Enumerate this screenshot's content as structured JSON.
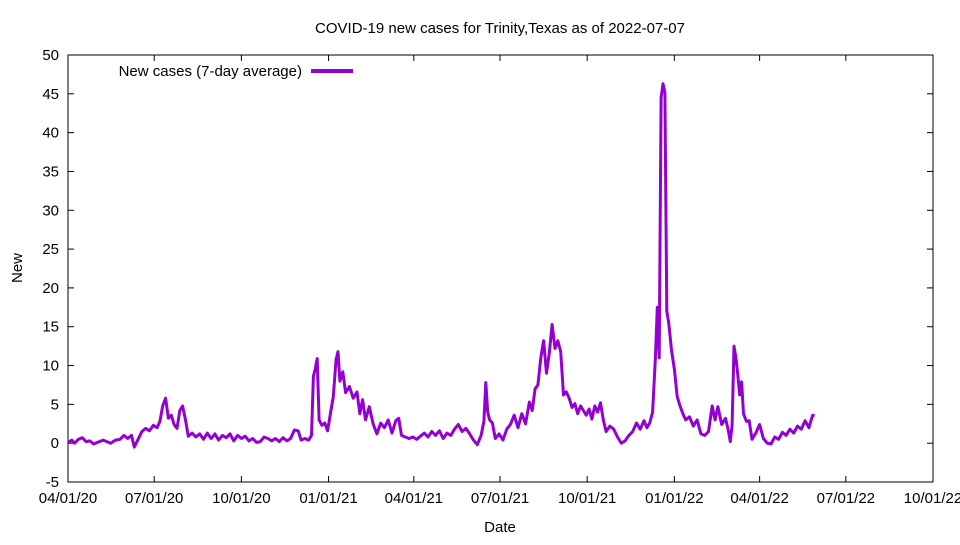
{
  "chart_data": {
    "type": "line",
    "title": "COVID-19 new cases for Trinity,Texas as of 2022-07-07",
    "xlabel": "Date",
    "ylabel": "New",
    "ylim": [
      -5,
      50
    ],
    "yticks": [
      -5,
      0,
      5,
      10,
      15,
      20,
      25,
      30,
      35,
      40,
      45,
      50
    ],
    "xlim": [
      "2020-04-01",
      "2022-10-01"
    ],
    "xticks": [
      {
        "date": "2020-04-01",
        "label": "04/01/20"
      },
      {
        "date": "2020-07-01",
        "label": "07/01/20"
      },
      {
        "date": "2020-10-01",
        "label": "10/01/20"
      },
      {
        "date": "2021-01-01",
        "label": "01/01/21"
      },
      {
        "date": "2021-04-01",
        "label": "04/01/21"
      },
      {
        "date": "2021-07-01",
        "label": "07/01/21"
      },
      {
        "date": "2021-10-01",
        "label": "10/01/21"
      },
      {
        "date": "2022-01-01",
        "label": "01/01/22"
      },
      {
        "date": "2022-04-01",
        "label": "04/01/22"
      },
      {
        "date": "2022-07-01",
        "label": "07/01/22"
      },
      {
        "date": "2022-10-01",
        "label": "10/01/22"
      }
    ],
    "grid": false,
    "legend_position": "top-left",
    "series": [
      {
        "name": "New cases (7-day average)",
        "color": "#9400d3",
        "points": [
          [
            "2020-04-01",
            0.1
          ],
          [
            "2020-04-05",
            0.4
          ],
          [
            "2020-04-08",
            0.0
          ],
          [
            "2020-04-12",
            0.5
          ],
          [
            "2020-04-16",
            0.7
          ],
          [
            "2020-04-20",
            0.2
          ],
          [
            "2020-04-24",
            0.3
          ],
          [
            "2020-04-28",
            -0.1
          ],
          [
            "2020-05-02",
            0.1
          ],
          [
            "2020-05-08",
            0.4
          ],
          [
            "2020-05-12",
            0.2
          ],
          [
            "2020-05-16",
            0.0
          ],
          [
            "2020-05-21",
            0.4
          ],
          [
            "2020-05-26",
            0.5
          ],
          [
            "2020-05-30",
            1.0
          ],
          [
            "2020-06-03",
            0.6
          ],
          [
            "2020-06-07",
            1.0
          ],
          [
            "2020-06-10",
            -0.5
          ],
          [
            "2020-06-14",
            0.5
          ],
          [
            "2020-06-18",
            1.5
          ],
          [
            "2020-06-22",
            1.9
          ],
          [
            "2020-06-26",
            1.6
          ],
          [
            "2020-06-30",
            2.3
          ],
          [
            "2020-07-04",
            2.0
          ],
          [
            "2020-07-07",
            2.8
          ],
          [
            "2020-07-10",
            4.8
          ],
          [
            "2020-07-13",
            5.8
          ],
          [
            "2020-07-16",
            3.2
          ],
          [
            "2020-07-19",
            3.6
          ],
          [
            "2020-07-22",
            2.4
          ],
          [
            "2020-07-25",
            1.9
          ],
          [
            "2020-07-28",
            4.2
          ],
          [
            "2020-07-31",
            4.8
          ],
          [
            "2020-08-03",
            3.0
          ],
          [
            "2020-08-06",
            0.9
          ],
          [
            "2020-08-10",
            1.3
          ],
          [
            "2020-08-14",
            0.8
          ],
          [
            "2020-08-18",
            1.2
          ],
          [
            "2020-08-22",
            0.5
          ],
          [
            "2020-08-26",
            1.3
          ],
          [
            "2020-08-30",
            0.6
          ],
          [
            "2020-09-03",
            1.2
          ],
          [
            "2020-09-07",
            0.4
          ],
          [
            "2020-09-11",
            1.0
          ],
          [
            "2020-09-15",
            0.7
          ],
          [
            "2020-09-19",
            1.2
          ],
          [
            "2020-09-23",
            0.3
          ],
          [
            "2020-09-27",
            1.0
          ],
          [
            "2020-10-01",
            0.6
          ],
          [
            "2020-10-05",
            0.9
          ],
          [
            "2020-10-09",
            0.3
          ],
          [
            "2020-10-13",
            0.6
          ],
          [
            "2020-10-17",
            0.1
          ],
          [
            "2020-10-21",
            0.2
          ],
          [
            "2020-10-25",
            0.8
          ],
          [
            "2020-10-29",
            0.6
          ],
          [
            "2020-11-02",
            0.3
          ],
          [
            "2020-11-06",
            0.6
          ],
          [
            "2020-11-10",
            0.2
          ],
          [
            "2020-11-14",
            0.7
          ],
          [
            "2020-11-18",
            0.3
          ],
          [
            "2020-11-22",
            0.6
          ],
          [
            "2020-11-26",
            1.7
          ],
          [
            "2020-11-30",
            1.6
          ],
          [
            "2020-12-03",
            0.4
          ],
          [
            "2020-12-07",
            0.6
          ],
          [
            "2020-12-11",
            0.4
          ],
          [
            "2020-12-14",
            1.0
          ],
          [
            "2020-12-16",
            8.6
          ],
          [
            "2020-12-18",
            9.6
          ],
          [
            "2020-12-20",
            10.9
          ],
          [
            "2020-12-22",
            3.0
          ],
          [
            "2020-12-25",
            2.3
          ],
          [
            "2020-12-28",
            2.6
          ],
          [
            "2020-12-31",
            1.6
          ],
          [
            "2021-01-03",
            3.8
          ],
          [
            "2021-01-06",
            6.0
          ],
          [
            "2021-01-09",
            10.8
          ],
          [
            "2021-01-11",
            11.8
          ],
          [
            "2021-01-13",
            8.0
          ],
          [
            "2021-01-16",
            9.2
          ],
          [
            "2021-01-19",
            6.5
          ],
          [
            "2021-01-23",
            7.3
          ],
          [
            "2021-01-27",
            5.8
          ],
          [
            "2021-01-31",
            6.6
          ],
          [
            "2021-02-03",
            3.8
          ],
          [
            "2021-02-06",
            5.6
          ],
          [
            "2021-02-09",
            3.0
          ],
          [
            "2021-02-13",
            4.7
          ],
          [
            "2021-02-17",
            2.5
          ],
          [
            "2021-02-21",
            1.2
          ],
          [
            "2021-02-25",
            2.6
          ],
          [
            "2021-03-01",
            2.0
          ],
          [
            "2021-03-05",
            3.0
          ],
          [
            "2021-03-09",
            1.3
          ],
          [
            "2021-03-13",
            2.9
          ],
          [
            "2021-03-16",
            3.2
          ],
          [
            "2021-03-19",
            1.0
          ],
          [
            "2021-03-23",
            0.8
          ],
          [
            "2021-03-27",
            0.6
          ],
          [
            "2021-03-31",
            0.8
          ],
          [
            "2021-04-04",
            0.5
          ],
          [
            "2021-04-08",
            0.9
          ],
          [
            "2021-04-12",
            1.3
          ],
          [
            "2021-04-16",
            0.8
          ],
          [
            "2021-04-20",
            1.5
          ],
          [
            "2021-04-24",
            1.0
          ],
          [
            "2021-04-28",
            1.6
          ],
          [
            "2021-05-02",
            0.6
          ],
          [
            "2021-05-06",
            1.3
          ],
          [
            "2021-05-10",
            1.0
          ],
          [
            "2021-05-14",
            1.8
          ],
          [
            "2021-05-18",
            2.4
          ],
          [
            "2021-05-22",
            1.5
          ],
          [
            "2021-05-26",
            1.9
          ],
          [
            "2021-05-30",
            1.2
          ],
          [
            "2021-06-03",
            0.4
          ],
          [
            "2021-06-07",
            -0.2
          ],
          [
            "2021-06-11",
            1.0
          ],
          [
            "2021-06-14",
            2.8
          ],
          [
            "2021-06-16",
            7.8
          ],
          [
            "2021-06-18",
            4.0
          ],
          [
            "2021-06-20",
            3.0
          ],
          [
            "2021-06-23",
            2.6
          ],
          [
            "2021-06-26",
            0.6
          ],
          [
            "2021-06-30",
            1.2
          ],
          [
            "2021-07-04",
            0.4
          ],
          [
            "2021-07-08",
            1.8
          ],
          [
            "2021-07-12",
            2.4
          ],
          [
            "2021-07-16",
            3.6
          ],
          [
            "2021-07-20",
            2.0
          ],
          [
            "2021-07-24",
            3.8
          ],
          [
            "2021-07-28",
            2.5
          ],
          [
            "2021-08-01",
            5.3
          ],
          [
            "2021-08-04",
            4.2
          ],
          [
            "2021-08-07",
            7.0
          ],
          [
            "2021-08-10",
            7.5
          ],
          [
            "2021-08-13",
            11.0
          ],
          [
            "2021-08-16",
            13.2
          ],
          [
            "2021-08-19",
            9.0
          ],
          [
            "2021-08-22",
            11.6
          ],
          [
            "2021-08-25",
            15.3
          ],
          [
            "2021-08-28",
            12.2
          ],
          [
            "2021-08-31",
            13.2
          ],
          [
            "2021-09-03",
            11.8
          ],
          [
            "2021-09-06",
            6.2
          ],
          [
            "2021-09-09",
            6.6
          ],
          [
            "2021-09-12",
            5.8
          ],
          [
            "2021-09-15",
            4.6
          ],
          [
            "2021-09-18",
            5.1
          ],
          [
            "2021-09-21",
            3.8
          ],
          [
            "2021-09-24",
            4.8
          ],
          [
            "2021-09-27",
            4.2
          ],
          [
            "2021-09-30",
            3.6
          ],
          [
            "2021-10-03",
            4.4
          ],
          [
            "2021-10-06",
            3.1
          ],
          [
            "2021-10-09",
            4.8
          ],
          [
            "2021-10-12",
            4.0
          ],
          [
            "2021-10-15",
            5.2
          ],
          [
            "2021-10-18",
            3.0
          ],
          [
            "2021-10-21",
            1.5
          ],
          [
            "2021-10-25",
            2.2
          ],
          [
            "2021-10-29",
            1.8
          ],
          [
            "2021-11-02",
            0.8
          ],
          [
            "2021-11-06",
            0.0
          ],
          [
            "2021-11-10",
            0.3
          ],
          [
            "2021-11-14",
            1.0
          ],
          [
            "2021-11-18",
            1.5
          ],
          [
            "2021-11-22",
            2.6
          ],
          [
            "2021-11-26",
            1.8
          ],
          [
            "2021-11-30",
            2.9
          ],
          [
            "2021-12-03",
            2.0
          ],
          [
            "2021-12-06",
            2.6
          ],
          [
            "2021-12-09",
            4.0
          ],
          [
            "2021-12-12",
            11.0
          ],
          [
            "2021-12-14",
            17.5
          ],
          [
            "2021-12-16",
            11.0
          ],
          [
            "2021-12-18",
            44.5
          ],
          [
            "2021-12-20",
            46.3
          ],
          [
            "2021-12-22",
            45.2
          ],
          [
            "2021-12-24",
            17.0
          ],
          [
            "2021-12-26",
            15.5
          ],
          [
            "2021-12-29",
            12.0
          ],
          [
            "2022-01-01",
            9.5
          ],
          [
            "2022-01-04",
            6.0
          ],
          [
            "2022-01-07",
            4.8
          ],
          [
            "2022-01-10",
            3.8
          ],
          [
            "2022-01-13",
            3.0
          ],
          [
            "2022-01-17",
            3.4
          ],
          [
            "2022-01-21",
            2.2
          ],
          [
            "2022-01-25",
            3.0
          ],
          [
            "2022-01-29",
            1.2
          ],
          [
            "2022-02-02",
            1.0
          ],
          [
            "2022-02-06",
            1.5
          ],
          [
            "2022-02-10",
            4.8
          ],
          [
            "2022-02-13",
            3.0
          ],
          [
            "2022-02-16",
            4.7
          ],
          [
            "2022-02-20",
            2.4
          ],
          [
            "2022-02-24",
            3.2
          ],
          [
            "2022-02-27",
            1.6
          ],
          [
            "2022-03-01",
            0.2
          ],
          [
            "2022-03-03",
            2.3
          ],
          [
            "2022-03-05",
            12.5
          ],
          [
            "2022-03-07",
            11.0
          ],
          [
            "2022-03-09",
            8.8
          ],
          [
            "2022-03-11",
            6.2
          ],
          [
            "2022-03-13",
            7.9
          ],
          [
            "2022-03-15",
            3.8
          ],
          [
            "2022-03-18",
            2.8
          ],
          [
            "2022-03-21",
            2.9
          ],
          [
            "2022-03-24",
            0.5
          ],
          [
            "2022-03-28",
            1.3
          ],
          [
            "2022-04-01",
            2.4
          ],
          [
            "2022-04-05",
            0.6
          ],
          [
            "2022-04-09",
            0.0
          ],
          [
            "2022-04-13",
            -0.1
          ],
          [
            "2022-04-17",
            0.8
          ],
          [
            "2022-04-21",
            0.5
          ],
          [
            "2022-04-25",
            1.4
          ],
          [
            "2022-04-29",
            1.0
          ],
          [
            "2022-05-03",
            1.8
          ],
          [
            "2022-05-07",
            1.3
          ],
          [
            "2022-05-11",
            2.2
          ],
          [
            "2022-05-15",
            1.8
          ],
          [
            "2022-05-19",
            2.9
          ],
          [
            "2022-05-23",
            2.0
          ],
          [
            "2022-05-27",
            3.6
          ],
          [
            "2022-05-29",
            3.6
          ]
        ]
      }
    ]
  }
}
